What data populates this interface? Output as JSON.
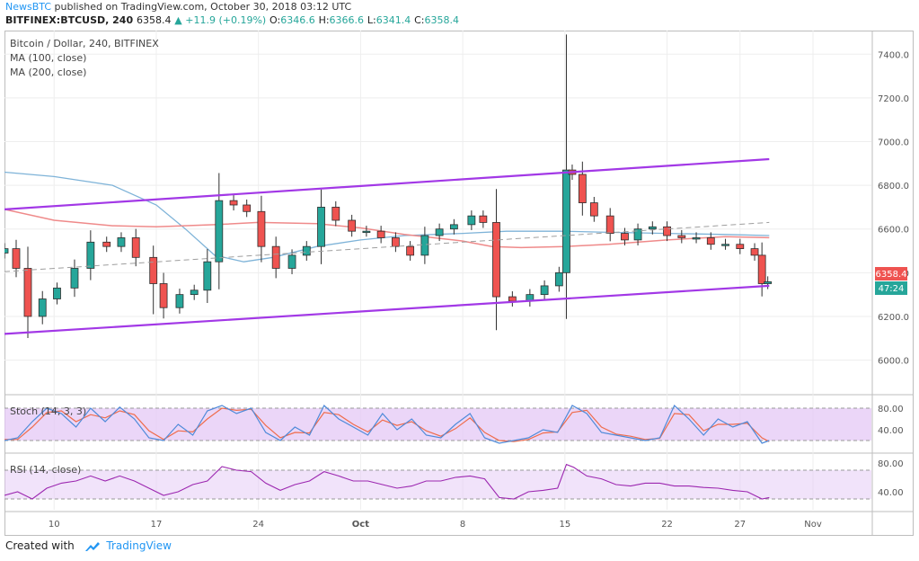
{
  "header": {
    "brand": "NewsBTC",
    "published": "published on TradingView.com, October 30, 2018 03:12 UTC",
    "symbol": "BITFINEX:BTCUSD, 240",
    "last": "6358.4",
    "change": "▲ +11.9 (+0.19%)",
    "open_label": "O:",
    "open": "6346.6",
    "high_label": "H:",
    "high": "6366.6",
    "low_label": "L:",
    "low": "6341.4",
    "close_label": "C:",
    "close": "6358.4"
  },
  "legend": {
    "title": "Bitcoin / Dollar, 240, BITFINEX",
    "ma100": "MA (100, close)",
    "ma200": "MA (200, close)",
    "stoch": "Stoch (14, 3, 3)",
    "rsi": "RSI (14, close)"
  },
  "price_tag": {
    "price": "6358.4",
    "countdown": "47:24"
  },
  "footer": {
    "created": "Created with",
    "brand": "TradingView"
  },
  "colors": {
    "up": "#26a69a",
    "down": "#ef5350",
    "candle": "#2e2e2e",
    "channel": "#a238e6",
    "ma100": "#7eb3d8",
    "ma200": "#ef8a8a",
    "stoch_k": "#4f8ad9",
    "stoch_d": "#ef6c4c",
    "rsi": "#9c27b0",
    "band": "#e4c8f5"
  },
  "chart_data": [
    {
      "type": "line",
      "title": "Bitcoin / Dollar, 240, BITFINEX",
      "ylim": [
        5850,
        7500
      ],
      "y_ticks": [
        "7400.0",
        "7200.0",
        "7000.0",
        "6800.0",
        "6600.0",
        "6400.0",
        "6200.0",
        "6000.0"
      ],
      "y_tick_values": [
        7400,
        7200,
        7000,
        6800,
        6600,
        6400,
        6200,
        6000
      ],
      "x_ticks": [
        "10",
        "17",
        "24",
        "Oct",
        "8",
        "15",
        "22",
        "27",
        "Nov"
      ],
      "x_tick_days": [
        10,
        17,
        24,
        31,
        38,
        45,
        52,
        57,
        62
      ],
      "xlim_days": [
        6.6,
        66
      ],
      "series": [
        {
          "name": "Bitcoin / Dollar",
          "x_days": [
            6.6,
            7.4,
            8.2,
            9.2,
            10.2,
            11.4,
            12.5,
            13.6,
            14.6,
            15.6,
            16.8,
            17.5,
            18.6,
            19.6,
            20.5,
            21.3,
            22.3,
            23.2,
            24.2,
            25.2,
            26.3,
            27.3,
            28.3,
            29.3,
            30.4,
            31.4,
            32.4,
            33.4,
            34.4,
            35.4,
            36.4,
            37.4,
            38.6,
            39.4,
            40.3,
            41.4,
            42.6,
            43.6,
            44.6,
            45.1,
            45.5,
            46.2,
            47.0,
            48.1,
            49.1,
            50.0,
            51.0,
            52.0,
            53.0,
            54.0,
            55.0,
            56.0,
            57.0,
            58.0,
            58.5,
            58.9
          ],
          "close": [
            6510,
            6420,
            6200,
            6280,
            6330,
            6420,
            6540,
            6520,
            6560,
            6470,
            6350,
            6240,
            6300,
            6320,
            6450,
            6730,
            6710,
            6680,
            6520,
            6420,
            6480,
            6520,
            6700,
            6640,
            6590,
            6590,
            6560,
            6520,
            6480,
            6570,
            6600,
            6620,
            6660,
            6630,
            6290,
            6270,
            6300,
            6340,
            6400,
            6870,
            6850,
            6720,
            6660,
            6580,
            6550,
            6600,
            6610,
            6570,
            6560,
            6560,
            6530,
            6530,
            6510,
            6480,
            6350,
            6358.4
          ]
        },
        {
          "name": "MA (100, close)",
          "x_days": [
            6.6,
            10,
            14,
            17,
            19,
            21,
            23,
            25,
            28,
            31,
            34,
            38,
            41,
            45,
            48,
            52,
            56,
            59
          ],
          "values": [
            6860,
            6840,
            6800,
            6710,
            6600,
            6480,
            6450,
            6470,
            6520,
            6550,
            6570,
            6580,
            6590,
            6590,
            6585,
            6580,
            6575,
            6570
          ]
        },
        {
          "name": "MA (200, close)",
          "x_days": [
            6.6,
            10,
            14,
            17,
            21,
            24,
            28,
            31,
            34,
            38,
            40,
            42,
            45,
            48,
            52,
            56,
            59
          ],
          "values": [
            6690,
            6640,
            6615,
            6610,
            6620,
            6630,
            6625,
            6605,
            6575,
            6545,
            6520,
            6515,
            6520,
            6530,
            6550,
            6565,
            6560
          ]
        },
        {
          "name": "Channel upper",
          "x_days": [
            6.6,
            59
          ],
          "values": [
            6690,
            6920
          ]
        },
        {
          "name": "Channel lower",
          "x_days": [
            6.6,
            59
          ],
          "values": [
            6120,
            6340
          ]
        },
        {
          "name": "Channel mid",
          "x_days": [
            6.6,
            59
          ],
          "values": [
            6405,
            6630
          ]
        }
      ]
    },
    {
      "type": "line",
      "title": "Stoch (14, 3, 3)",
      "ylim": [
        0,
        100
      ],
      "y_ticks": [
        "80.00",
        "40.00"
      ],
      "y_tick_values": [
        80,
        40
      ],
      "band": [
        20,
        80
      ],
      "series": [
        {
          "name": "%K",
          "x_days": [
            6.6,
            7.5,
            8.5,
            9.5,
            10.5,
            11.5,
            12.5,
            13.5,
            14.5,
            15.5,
            16.5,
            17.5,
            18.5,
            19.5,
            20.5,
            21.5,
            22.5,
            23.5,
            24.5,
            25.5,
            26.5,
            27.5,
            28.5,
            29.5,
            30.5,
            31.5,
            32.5,
            33.5,
            34.5,
            35.5,
            36.5,
            37.5,
            38.5,
            39.5,
            40.5,
            41.5,
            42.5,
            43.5,
            44.5,
            45.5,
            46.5,
            47.5,
            48.5,
            49.5,
            50.5,
            51.5,
            52.5,
            53.5,
            54.5,
            55.5,
            56.5,
            57.5,
            58.5,
            59
          ],
          "values": [
            20,
            25,
            55,
            80,
            70,
            45,
            80,
            55,
            82,
            60,
            25,
            20,
            50,
            30,
            75,
            85,
            70,
            80,
            35,
            20,
            45,
            30,
            85,
            60,
            45,
            30,
            70,
            40,
            60,
            30,
            25,
            50,
            70,
            25,
            15,
            20,
            25,
            40,
            35,
            85,
            70,
            35,
            30,
            25,
            20,
            25,
            85,
            60,
            30,
            60,
            45,
            55,
            15,
            20
          ]
        },
        {
          "name": "%D",
          "x_days": [
            6.6,
            7.5,
            8.5,
            9.5,
            10.5,
            11.5,
            12.5,
            13.5,
            14.5,
            15.5,
            16.5,
            17.5,
            18.5,
            19.5,
            20.5,
            21.5,
            22.5,
            23.5,
            24.5,
            25.5,
            26.5,
            27.5,
            28.5,
            29.5,
            30.5,
            31.5,
            32.5,
            33.5,
            34.5,
            35.5,
            36.5,
            37.5,
            38.5,
            39.5,
            40.5,
            41.5,
            42.5,
            43.5,
            44.5,
            45.5,
            46.5,
            47.5,
            48.5,
            49.5,
            50.5,
            51.5,
            52.5,
            53.5,
            54.5,
            55.5,
            56.5,
            57.5,
            58.5,
            59
          ],
          "values": [
            22,
            22,
            45,
            72,
            75,
            55,
            68,
            62,
            75,
            68,
            38,
            22,
            38,
            36,
            60,
            80,
            76,
            78,
            48,
            25,
            35,
            34,
            72,
            68,
            50,
            36,
            58,
            48,
            55,
            38,
            28,
            42,
            62,
            35,
            20,
            18,
            22,
            34,
            36,
            72,
            76,
            45,
            32,
            28,
            22,
            24,
            70,
            68,
            38,
            50,
            50,
            52,
            25,
            18
          ]
        }
      ]
    },
    {
      "type": "line",
      "title": "RSI (14, close)",
      "ylim": [
        15,
        90
      ],
      "y_ticks": [
        "80.00",
        "40.00"
      ],
      "y_tick_values": [
        80,
        40
      ],
      "band": [
        30,
        70
      ],
      "series": [
        {
          "name": "RSI",
          "x_days": [
            6.6,
            7.5,
            8.5,
            9.5,
            10.5,
            11.5,
            12.5,
            13.5,
            14.5,
            15.5,
            16.5,
            17.5,
            18.5,
            19.5,
            20.5,
            21.5,
            22.5,
            23.5,
            24.5,
            25.5,
            26.5,
            27.5,
            28.5,
            29.5,
            30.5,
            31.5,
            32.5,
            33.5,
            34.5,
            35.5,
            36.5,
            37.5,
            38.5,
            39.5,
            40.5,
            41.5,
            42.5,
            43.5,
            44.5,
            45.1,
            45.6,
            46.5,
            47.5,
            48.5,
            49.5,
            50.5,
            51.5,
            52.5,
            53.5,
            54.5,
            55.5,
            56.5,
            57.5,
            58.5,
            59
          ],
          "values": [
            35,
            40,
            30,
            45,
            52,
            55,
            62,
            55,
            62,
            55,
            45,
            35,
            40,
            50,
            55,
            75,
            70,
            68,
            52,
            42,
            50,
            55,
            68,
            62,
            55,
            55,
            50,
            45,
            48,
            55,
            55,
            60,
            62,
            58,
            32,
            30,
            40,
            42,
            45,
            78,
            74,
            62,
            58,
            50,
            48,
            52,
            52,
            48,
            48,
            46,
            45,
            42,
            40,
            30,
            32
          ]
        }
      ]
    }
  ]
}
